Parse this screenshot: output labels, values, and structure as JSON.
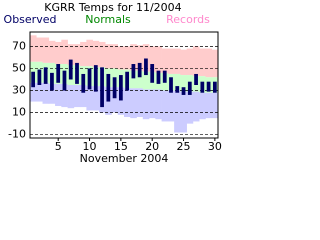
{
  "chart_data": {
    "type": "range-bar",
    "title": "KGRR Temps for 11/2004",
    "x_label": "November 2004",
    "x": [
      1,
      2,
      3,
      4,
      5,
      6,
      7,
      8,
      9,
      10,
      11,
      12,
      13,
      14,
      15,
      16,
      17,
      18,
      19,
      20,
      21,
      22,
      23,
      24,
      25,
      26,
      27,
      28,
      29,
      30
    ],
    "xlim": [
      0.5,
      30.5
    ],
    "xticks": [
      5,
      10,
      15,
      20,
      25,
      30
    ],
    "ylim": [
      -13,
      83
    ],
    "yticks": [
      -10,
      10,
      30,
      50,
      70
    ],
    "grid": true,
    "series": [
      {
        "name": "Observed",
        "color": "#000066",
        "high": [
          47,
          49,
          51,
          46,
          54,
          48,
          58,
          55,
          45,
          50,
          53,
          51,
          45,
          42,
          44,
          47,
          54,
          55,
          59,
          54,
          48,
          48,
          42,
          34,
          33,
          38,
          45,
          38,
          38,
          38
        ],
        "low": [
          33,
          35,
          36,
          30,
          37,
          30,
          40,
          36,
          28,
          31,
          29,
          15,
          20,
          23,
          21,
          30,
          41,
          42,
          44,
          37,
          36,
          37,
          28,
          28,
          26,
          26,
          35,
          28,
          29,
          28
        ]
      },
      {
        "name": "Normals",
        "color": "#008800",
        "band_color": "#ccffcc",
        "high": [
          56,
          56,
          55,
          55,
          54,
          54,
          53,
          53,
          52,
          52,
          51,
          51,
          50,
          50,
          49,
          49,
          48,
          48,
          47,
          47,
          46,
          46,
          45,
          45,
          44,
          44,
          43,
          43,
          42,
          42
        ],
        "low": [
          37,
          37,
          37,
          36,
          36,
          36,
          35,
          35,
          35,
          34,
          34,
          34,
          33,
          33,
          33,
          32,
          32,
          32,
          31,
          31,
          31,
          30,
          30,
          30,
          29,
          29,
          29,
          28,
          28,
          28
        ]
      },
      {
        "name": "Records",
        "color": "#ff88cc",
        "high_color": "#ffcccc",
        "low_color": "#ccccff",
        "high": [
          80,
          78,
          78,
          75,
          74,
          76,
          72,
          72,
          74,
          76,
          75,
          74,
          72,
          72,
          70,
          70,
          72,
          71,
          72,
          70,
          70,
          68,
          68,
          68,
          67,
          68,
          70,
          68,
          68,
          67
        ],
        "low": [
          20,
          20,
          18,
          18,
          16,
          15,
          14,
          15,
          15,
          12,
          12,
          10,
          8,
          10,
          8,
          6,
          5,
          6,
          4,
          5,
          4,
          2,
          2,
          -8,
          -8,
          0,
          2,
          4,
          5,
          5
        ]
      }
    ]
  }
}
